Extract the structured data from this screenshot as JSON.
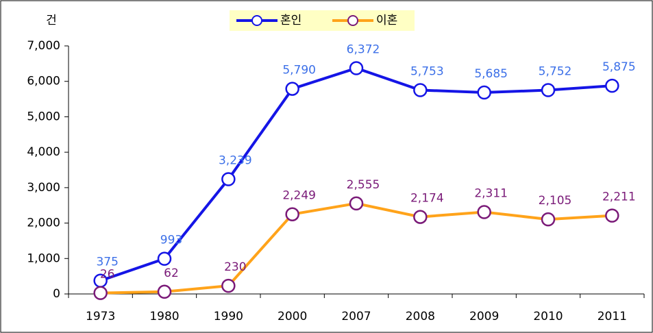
{
  "chart_data": {
    "type": "line",
    "y_unit_label": "건",
    "categories": [
      "1973",
      "1980",
      "1990",
      "2000",
      "2007",
      "2008",
      "2009",
      "2010",
      "2011"
    ],
    "series": [
      {
        "name": "혼인",
        "color": "#1515e6",
        "marker_color": "#1515e6",
        "label_color": "#3b6fe8",
        "values": [
          375,
          993,
          3239,
          5790,
          6372,
          5753,
          5685,
          5752,
          5875
        ],
        "value_labels": [
          "375",
          "993",
          "3,239",
          "5,790",
          "6,372",
          "5,753",
          "5,685",
          "5,752",
          "5,875"
        ]
      },
      {
        "name": "이혼",
        "color": "#ffa31a",
        "marker_color": "#7a1a78",
        "label_color": "#7a1a78",
        "values": [
          26,
          62,
          230,
          2249,
          2555,
          2174,
          2311,
          2105,
          2211
        ],
        "value_labels": [
          "26",
          "62",
          "230",
          "2,249",
          "2,555",
          "2,174",
          "2,311",
          "2,105",
          "2,211"
        ]
      }
    ],
    "ylim": [
      0,
      7000
    ],
    "yticks": [
      0,
      {
        "value": 1000,
        "label": "1,000"
      },
      {
        "value": 2000,
        "label": "2,000"
      },
      {
        "value": 3000,
        "label": "3,000"
      },
      {
        "value": 4000,
        "label": "4,000"
      },
      {
        "value": 5000,
        "label": "5,000"
      },
      {
        "value": 6000,
        "label": "6,000"
      },
      {
        "value": 7000,
        "label": "7,000"
      }
    ],
    "legend": "top",
    "legend_background": "#ffffc4"
  }
}
